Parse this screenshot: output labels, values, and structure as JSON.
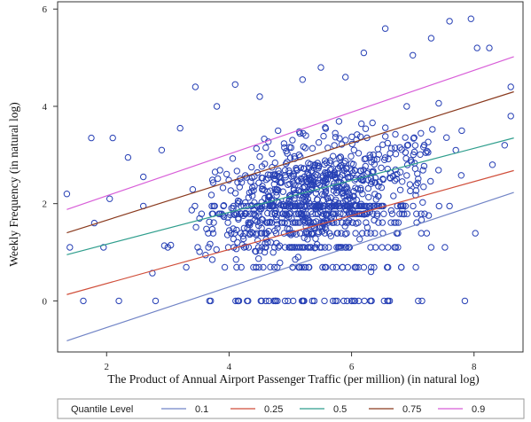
{
  "chart_data": {
    "type": "scatter",
    "title": "",
    "xlabel": "The Product of Annual Airport Passenger Traffic (per million) (in natural log)",
    "ylabel": "Weekly Frequency (in natural log)",
    "xlim": [
      1.2,
      8.8
    ],
    "ylim": [
      -1.05,
      6.15
    ],
    "x_ticks": [
      2,
      4,
      6,
      8
    ],
    "y_ticks": [
      0,
      2,
      4,
      6
    ],
    "grid": false,
    "legend_position": "bottom",
    "legend_title": "Quantile Level",
    "marker": "open-circle",
    "marker_color": "#2740b5",
    "levels_y": [
      0,
      0.69,
      1.1,
      1.39,
      1.61,
      1.79,
      1.95
    ],
    "point_count": 1100,
    "scatter_sample": [
      [
        1.35,
        2.2
      ],
      [
        1.4,
        1.1
      ],
      [
        1.62,
        0.0
      ],
      [
        1.75,
        3.35
      ],
      [
        1.8,
        1.6
      ],
      [
        1.95,
        1.1
      ],
      [
        2.05,
        2.1
      ],
      [
        2.1,
        3.35
      ],
      [
        2.35,
        2.95
      ],
      [
        2.6,
        2.55
      ],
      [
        2.9,
        3.1
      ],
      [
        3.2,
        3.55
      ],
      [
        3.45,
        4.4
      ],
      [
        3.8,
        4.0
      ],
      [
        4.1,
        4.45
      ],
      [
        4.5,
        4.2
      ],
      [
        5.2,
        4.55
      ],
      [
        5.5,
        4.8
      ],
      [
        5.9,
        4.6
      ],
      [
        6.2,
        5.1
      ],
      [
        6.55,
        5.6
      ],
      [
        7.0,
        5.05
      ],
      [
        7.3,
        5.4
      ],
      [
        7.6,
        5.75
      ],
      [
        7.95,
        5.8
      ],
      [
        8.05,
        5.2
      ],
      [
        8.25,
        5.2
      ],
      [
        8.6,
        4.4
      ],
      [
        8.6,
        3.8
      ],
      [
        8.5,
        3.2
      ],
      [
        8.3,
        2.8
      ],
      [
        7.85,
        0.0
      ],
      [
        7.15,
        0.0
      ],
      [
        6.6,
        0.0
      ],
      [
        6.0,
        0.0
      ],
      [
        5.2,
        0.0
      ],
      [
        4.6,
        0.0
      ],
      [
        3.7,
        0.0
      ],
      [
        2.8,
        0.0
      ],
      [
        2.2,
        0.0
      ],
      [
        3.3,
        0.69
      ],
      [
        4.2,
        0.69
      ],
      [
        5.3,
        0.69
      ],
      [
        6.2,
        0.69
      ],
      [
        7.05,
        0.69
      ],
      [
        3.0,
        1.1
      ],
      [
        4.6,
        1.1
      ],
      [
        5.9,
        1.1
      ],
      [
        7.3,
        1.1
      ],
      [
        2.6,
        1.95
      ],
      [
        4.3,
        1.95
      ],
      [
        5.4,
        1.95
      ],
      [
        6.5,
        1.95
      ],
      [
        7.6,
        1.95
      ],
      [
        5.1,
        2.7
      ],
      [
        6.3,
        3.0
      ],
      [
        4.8,
        3.5
      ],
      [
        6.9,
        4.0
      ],
      [
        6.1,
        2.3
      ],
      [
        7.8,
        3.5
      ]
    ],
    "series": [
      {
        "name": "0.1",
        "color": "#7184c6",
        "x": [
          1.35,
          8.65
        ],
        "y": [
          -0.82,
          2.23
        ]
      },
      {
        "name": "0.25",
        "color": "#d04e3a",
        "x": [
          1.35,
          8.65
        ],
        "y": [
          0.13,
          2.68
        ]
      },
      {
        "name": "0.5",
        "color": "#2f9e8d",
        "x": [
          1.35,
          8.65
        ],
        "y": [
          0.95,
          3.35
        ]
      },
      {
        "name": "0.75",
        "color": "#8a3a1e",
        "x": [
          1.35,
          8.65
        ],
        "y": [
          1.4,
          4.3
        ]
      },
      {
        "name": "0.9",
        "color": "#d85ed8",
        "x": [
          1.35,
          8.65
        ],
        "y": [
          1.88,
          5.02
        ]
      }
    ]
  }
}
